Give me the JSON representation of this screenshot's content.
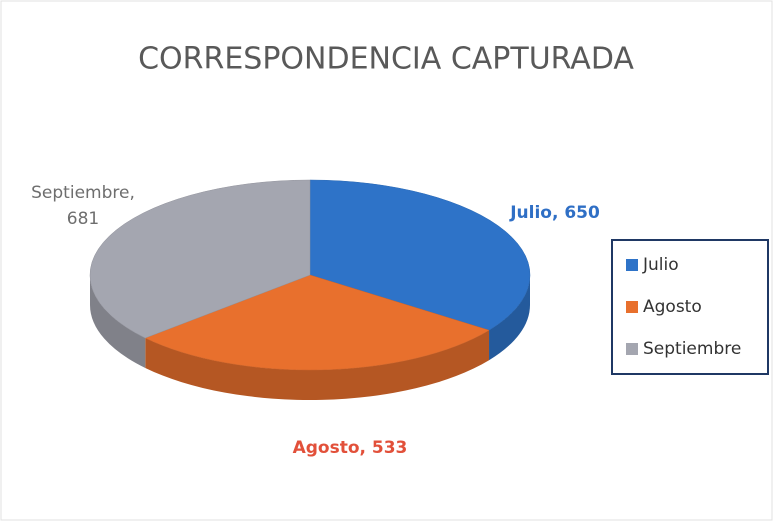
{
  "chart_data": {
    "type": "pie",
    "title": "CORRESPONDENCIA CAPTURADA",
    "categories": [
      "Julio",
      "Agosto",
      "Septiembre"
    ],
    "values": [
      650,
      533,
      681
    ],
    "value_labels": [
      "Julio, 650",
      "Agosto, 533",
      "Septiembre, 681"
    ],
    "colors": [
      "#2e73c8",
      "#e8702d",
      "#a4a6b0"
    ],
    "label_colors": [
      "#2f6fc5",
      "#e2503a",
      "#6e6e6e"
    ],
    "legend": "right"
  }
}
